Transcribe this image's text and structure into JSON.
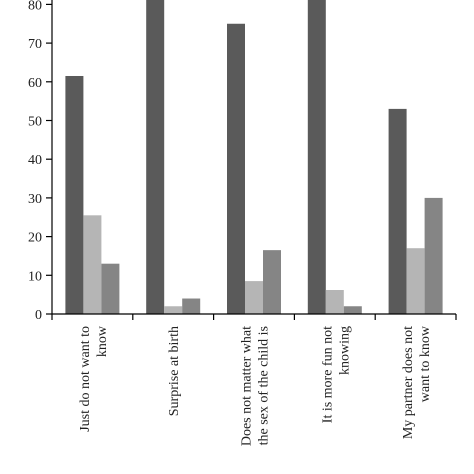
{
  "chart_data": {
    "type": "bar",
    "title": "",
    "xlabel": "",
    "ylabel": "",
    "ylim": [
      0,
      80
    ],
    "yticks": [
      0,
      10,
      20,
      30,
      40,
      50,
      60,
      70,
      80
    ],
    "grid": false,
    "legend": "none",
    "categories": [
      [
        "Just do not want to",
        "know"
      ],
      [
        "Surprise at birth"
      ],
      [
        "Does not matter what",
        "the sex of the child is"
      ],
      [
        "It is more fun not",
        "knowing"
      ],
      [
        "My partner does not",
        "want to know"
      ]
    ],
    "series": [
      {
        "color": "#5a5a5a",
        "values": [
          61.5,
          83,
          75,
          83,
          53
        ]
      },
      {
        "color": "#b5b5b5",
        "values": [
          25.5,
          2,
          8.5,
          6.2,
          17
        ]
      },
      {
        "color": "#858585",
        "values": [
          13,
          4,
          16.5,
          2,
          30
        ]
      }
    ]
  }
}
